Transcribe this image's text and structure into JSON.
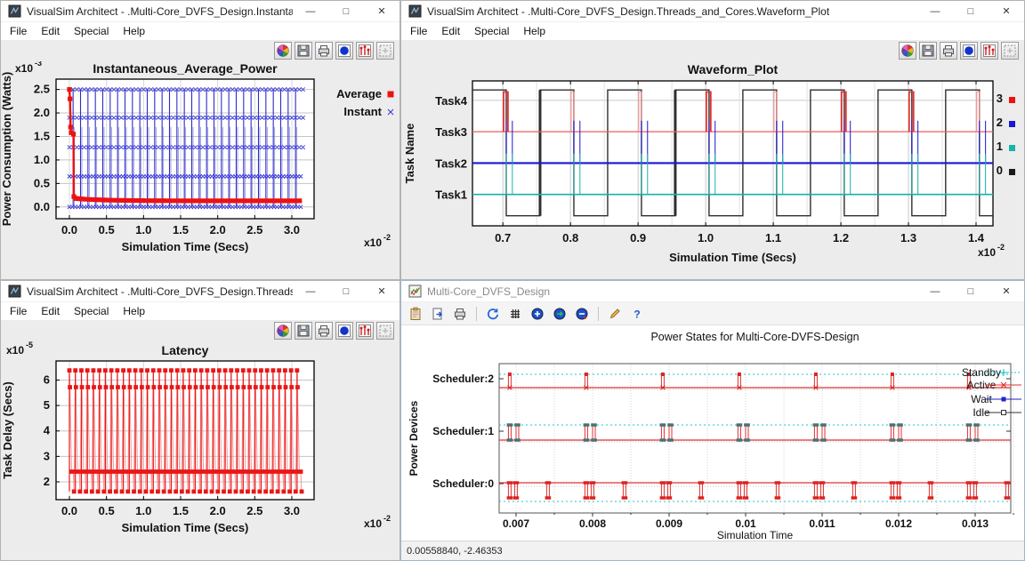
{
  "window_controls": {
    "minimize": "—",
    "maximize": "□",
    "close": "✕"
  },
  "plot_toolbar": [
    {
      "name": "color-palette-icon"
    },
    {
      "name": "save-icon"
    },
    {
      "name": "print-icon"
    },
    {
      "name": "fit-view-icon"
    },
    {
      "name": "plot-format-icon"
    },
    {
      "name": "fullscreen-icon"
    }
  ],
  "model_toolbar": [
    {
      "name": "clipboard-icon"
    },
    {
      "name": "export-image-icon"
    },
    {
      "name": "print-icon"
    },
    {
      "name": "separator"
    },
    {
      "name": "reload-icon"
    },
    {
      "name": "grid-icon"
    },
    {
      "name": "zoom-in-icon"
    },
    {
      "name": "zoom-reset-icon"
    },
    {
      "name": "zoom-out-icon"
    },
    {
      "name": "separator"
    },
    {
      "name": "edit-icon"
    },
    {
      "name": "help-icon"
    }
  ],
  "windows": [
    {
      "title": "VisualSim Architect - .Multi-Core_DVFS_Design.Instantaneous_...",
      "menu": [
        "File",
        "Edit",
        "Special",
        "Help"
      ]
    },
    {
      "title": "VisualSim Architect - .Multi-Core_DVFS_Design.Threads_and_Cores.Waveform_Plot",
      "menu": [
        "File",
        "Edit",
        "Special",
        "Help"
      ]
    },
    {
      "title": "VisualSim Architect - .Multi-Core_DVFS_Design.Threads_and_C...",
      "menu": [
        "File",
        "Edit",
        "Special",
        "Help"
      ]
    },
    {
      "title": "Multi-Core_DVFS_Design",
      "status": "0.00558840, -2.46353"
    }
  ],
  "chart_data": [
    {
      "id": "instantaneous_average_power",
      "type": "line",
      "title": "Instantaneous_Average_Power",
      "xlabel": "Simulation Time (Secs)",
      "x_scale_exp": "-2",
      "ylabel": "Power Consumption (Watts)",
      "y_scale_exp": "-3",
      "xticks": [
        "0.0",
        "0.5",
        "1.0",
        "1.5",
        "2.0",
        "2.5",
        "3.0"
      ],
      "yticks": [
        "0.0",
        "0.5",
        "1.0",
        "1.5",
        "2.0",
        "2.5"
      ],
      "xlim": [
        -0.18,
        3.3
      ],
      "ylim": [
        -0.25,
        2.72
      ],
      "legend": [
        {
          "label": "Average",
          "color": "#ee1111",
          "marker": "square"
        },
        {
          "label": "Instant",
          "color": "#3333cc",
          "marker": "x"
        }
      ],
      "series": {
        "instant": {
          "color": "#2d2dc8",
          "light_color": "#8888e0",
          "spike_start": 0.05,
          "spike_period": 0.1,
          "spike_count": 31,
          "spike_top": 2.5,
          "secondary_top": 1.7,
          "marker_rows": [
            2.5,
            1.9,
            1.27,
            0.65,
            0.0
          ]
        },
        "average": {
          "color": "#ee1111",
          "points": [
            [
              0,
              2.5
            ],
            [
              0.008,
              2.3
            ],
            [
              0.016,
              1.7
            ],
            [
              0.024,
              1.58
            ],
            [
              0.055,
              1.55
            ],
            [
              0.06,
              0.22
            ],
            [
              0.3,
              0.17
            ],
            [
              0.7,
              0.145
            ],
            [
              1.2,
              0.135
            ],
            [
              3.13,
              0.13
            ]
          ],
          "flat_level": 0.13
        }
      }
    },
    {
      "id": "waveform_plot",
      "type": "waveform",
      "title": "Waveform_Plot",
      "xlabel": "Simulation Time (Secs)",
      "x_scale_exp": "-2",
      "ylabel": "Task Name",
      "xticks": [
        "0.7",
        "0.8",
        "0.9",
        "1.0",
        "1.1",
        "1.2",
        "1.3",
        "1.4"
      ],
      "xlim": [
        0.655,
        1.425
      ],
      "task_labels": [
        "Task4",
        "Task3",
        "Task2",
        "Task1"
      ],
      "legend": [
        {
          "label": "3",
          "color": "#ee1111"
        },
        {
          "label": "2",
          "color": "#1818d0"
        },
        {
          "label": "1",
          "color": "#18b2aa"
        },
        {
          "label": "0",
          "color": "#1a1a1a"
        }
      ],
      "signals": {
        "black": {
          "color": "#2e2e2e",
          "low": 0.32,
          "high": 4.33,
          "drops": [
            0.705,
            0.805,
            0.905,
            1.005,
            1.105,
            1.205,
            1.305,
            1.405
          ],
          "rises": [
            0.755,
            0.855,
            0.955,
            1.055,
            1.155,
            1.255,
            1.355
          ],
          "thick_rises": [
            0.755,
            0.955
          ]
        },
        "red": {
          "bold_color": "#e83030",
          "thin_color": "#f89090",
          "baseline": 3,
          "top": 4.27,
          "pulses": [
            {
              "x": 0.701,
              "bold": true
            },
            {
              "x": 0.801,
              "bold": false
            },
            {
              "x": 0.901,
              "bold": false
            },
            {
              "x": 1.001,
              "bold": true
            },
            {
              "x": 1.101,
              "bold": false
            },
            {
              "x": 1.201,
              "bold": true
            },
            {
              "x": 1.301,
              "bold": true
            },
            {
              "x": 1.401,
              "bold": false
            }
          ],
          "width_bold": 0.0065,
          "width_thin": 0.004
        },
        "blue": {
          "color": "#1818d0",
          "baseline": 2,
          "top": 3.35,
          "pulse_offsets": [
            0.005,
            0.014
          ],
          "period": 0.1,
          "start": 0.7,
          "count": 8
        },
        "teal": {
          "color": "#18b2aa",
          "baseline": 1,
          "top": 2.3,
          "pulse_offsets": [
            0.005,
            0.014
          ],
          "period": 0.1,
          "start": 0.7,
          "count": 8
        }
      }
    },
    {
      "id": "latency",
      "type": "line",
      "title": "Latency",
      "xlabel": "Simulation Time (Secs)",
      "x_scale_exp": "-2",
      "ylabel": "Task Delay (Secs)",
      "y_scale_exp": "-5",
      "xticks": [
        "0.0",
        "0.5",
        "1.0",
        "1.5",
        "2.0",
        "2.5",
        "3.0"
      ],
      "yticks": [
        "2",
        "3",
        "4",
        "5",
        "6"
      ],
      "xlim": [
        -0.18,
        3.3
      ],
      "ylim": [
        1.3,
        6.75
      ],
      "series": {
        "latency": {
          "color": "#e81717",
          "light_color": "#f89898",
          "cycle_period": 0.0808,
          "cycle_count": 39,
          "levels": {
            "high1": 6.38,
            "high2": 5.72,
            "mid": 2.4,
            "low": 1.62
          }
        }
      }
    },
    {
      "id": "power_states",
      "type": "waveform",
      "title": "Power States for Multi-Core-DVFS-Design",
      "xlabel": "Simulation Time",
      "ylabel": "Power Devices",
      "xticks": [
        "0.007",
        "0.008",
        "0.009",
        "0.01",
        "0.011",
        "0.012",
        "0.013"
      ],
      "xlim": [
        0.00655,
        0.01365
      ],
      "rows": [
        {
          "label": "Scheduler:2",
          "pulse_style": "single",
          "marker_color": "#dd2222"
        },
        {
          "label": "Scheduler:1",
          "pulse_style": "pair",
          "marker_color": "#4d7070"
        },
        {
          "label": "Scheduler:0",
          "pulse_style": "alternating",
          "marker_color": "#dd2222",
          "inverted": true
        }
      ],
      "pulse_start": 0.0069,
      "pulse_period": 0.001,
      "colors": {
        "standby": "#24c6c6",
        "active": "#e03030",
        "wait": "#2222cc",
        "idle": "#333333",
        "grid": "#c9c9c9"
      },
      "legend": [
        {
          "label": "Standby",
          "color": "#24c6c6",
          "style": "dotted",
          "marker": "plus"
        },
        {
          "label": "Active",
          "color": "#e03030",
          "style": "solid",
          "marker": "x"
        },
        {
          "label": "Wait",
          "color": "#2222cc",
          "style": "solid",
          "marker": "square"
        },
        {
          "label": "Idle",
          "color": "#333333",
          "style": "solid",
          "marker": "open-square"
        }
      ]
    }
  ]
}
